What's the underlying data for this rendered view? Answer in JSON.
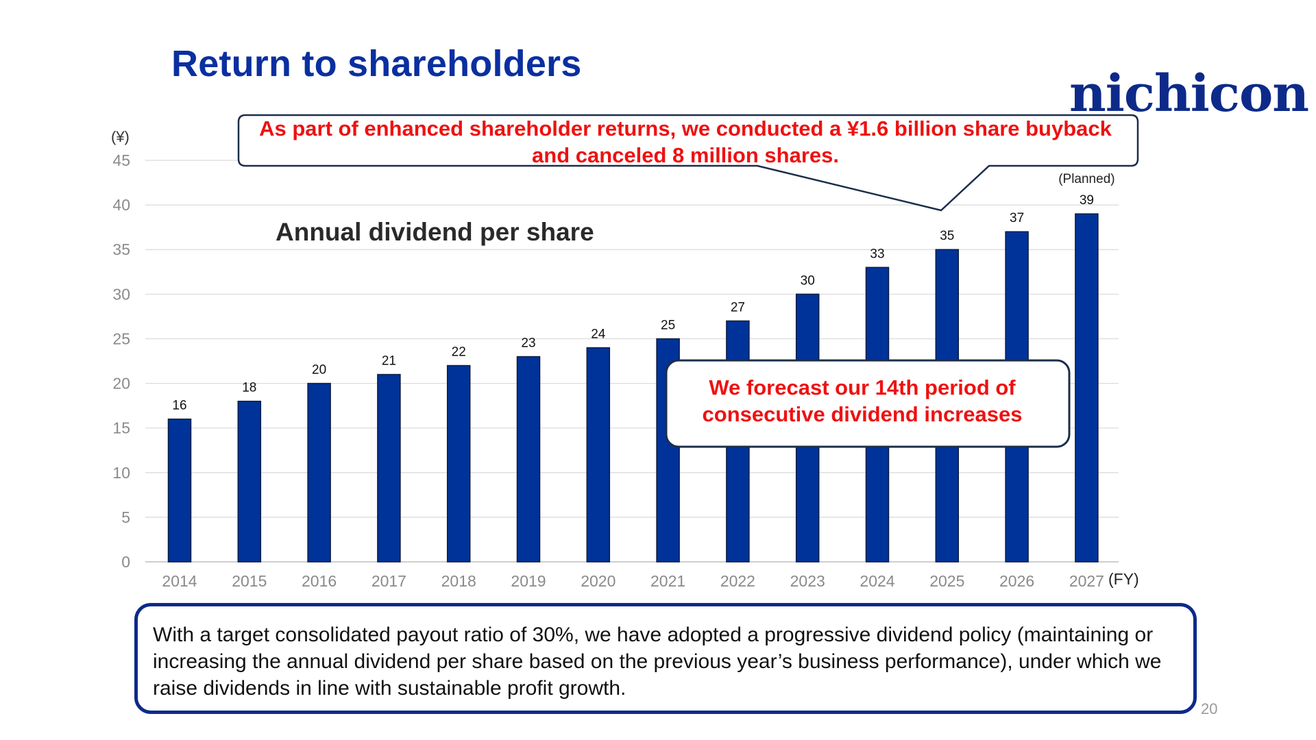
{
  "slide": {
    "title": "Return to shareholders",
    "logo_text": "nichicon",
    "page_number": "20"
  },
  "callouts": {
    "buyback": "As part of enhanced shareholder returns, we conducted a ¥1.6 billion share buyback and canceled 8 million shares.",
    "forecast": "We forecast our 14th period of consecutive dividend increases"
  },
  "policy_note": "With a target consolidated payout ratio of 30%, we have adopted a progressive dividend policy (maintaining or increasing the annual dividend per share based on the previous year’s business performance), under which we raise dividends in line with sustainable profit growth.",
  "colors": {
    "title": "#0a2fa0",
    "bar": "#003399",
    "callout_text": "#ee1111",
    "frame": "#0d2a8a"
  },
  "chart_data": {
    "type": "bar",
    "title": "Annual dividend per share",
    "unit_label": "(¥)",
    "x_unit_label": "(FY)",
    "categories": [
      "2014",
      "2015",
      "2016",
      "2017",
      "2018",
      "2019",
      "2020",
      "2021",
      "2022",
      "2023",
      "2024",
      "2025",
      "2026",
      "2027"
    ],
    "values": [
      16,
      18,
      20,
      21,
      22,
      23,
      24,
      25,
      27,
      30,
      33,
      35,
      37,
      39
    ],
    "data_labels": [
      "16",
      "18",
      "20",
      "21",
      "22",
      "23",
      "24",
      "25",
      "27",
      "30",
      "33",
      "35",
      "37",
      "39"
    ],
    "planned_note": "(Planned)",
    "planned_category": "2027",
    "ylim": [
      0,
      45
    ],
    "yticks": [
      0,
      5,
      10,
      15,
      20,
      25,
      30,
      35,
      40,
      45
    ],
    "ytick_labels": [
      "0",
      "5",
      "10",
      "15",
      "20",
      "25",
      "30",
      "35",
      "40",
      "45"
    ],
    "grid": true,
    "legend": "none"
  }
}
